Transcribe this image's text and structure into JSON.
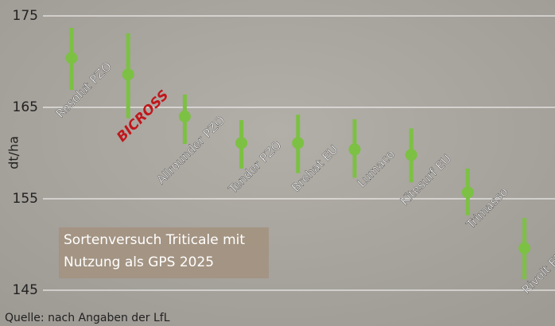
{
  "chart_data": {
    "type": "errorbar",
    "categories": [
      "Resolut PZO",
      "BICROSS",
      "Allrounder PZO",
      "Tender PZO",
      "Brehat EU",
      "Lumaco",
      "Kitesurf EU",
      "Trimasso",
      "Rivolt EU"
    ],
    "values": [
      170.4,
      168.6,
      164.0,
      161.1,
      161.1,
      160.4,
      159.8,
      155.7,
      149.6
    ],
    "lows": [
      166.9,
      163.8,
      161.0,
      158.3,
      157.8,
      157.3,
      156.8,
      153.2,
      146.2
    ],
    "highs": [
      173.7,
      173.1,
      166.4,
      163.6,
      164.2,
      163.7,
      162.7,
      158.3,
      152.9
    ],
    "color": "#7cc143",
    "label_colors": [
      "#ffffff",
      "#c0171c",
      "#ffffff",
      "#ffffff",
      "#ffffff",
      "#ffffff",
      "#ffffff",
      "#ffffff",
      "#ffffff"
    ],
    "ylabel": "dt/ha",
    "ylim": [
      145,
      175
    ],
    "yticks": [
      145,
      155,
      165,
      175
    ],
    "grid": true,
    "annotation": [
      "Sortenversuch Triticale mit",
      "Nutzung als GPS 2025"
    ],
    "source": "Quelle: nach Angaben der LfL"
  }
}
